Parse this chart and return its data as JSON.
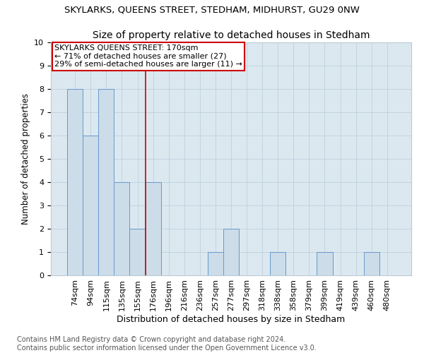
{
  "title": "SKYLARKS, QUEENS STREET, STEDHAM, MIDHURST, GU29 0NW",
  "subtitle": "Size of property relative to detached houses in Stedham",
  "xlabel": "Distribution of detached houses by size in Stedham",
  "ylabel": "Number of detached properties",
  "categories": [
    "74sqm",
    "94sqm",
    "115sqm",
    "135sqm",
    "155sqm",
    "176sqm",
    "196sqm",
    "216sqm",
    "236sqm",
    "257sqm",
    "277sqm",
    "297sqm",
    "318sqm",
    "338sqm",
    "358sqm",
    "379sqm",
    "399sqm",
    "419sqm",
    "439sqm",
    "460sqm",
    "480sqm"
  ],
  "values": [
    8,
    6,
    8,
    4,
    2,
    4,
    0,
    0,
    0,
    1,
    2,
    0,
    0,
    1,
    0,
    0,
    1,
    0,
    0,
    1,
    0
  ],
  "bar_color": "#ccdce8",
  "bar_edge_color": "#6699cc",
  "subject_line_index": 5,
  "subject_label": "SKYLARKS QUEENS STREET: 170sqm",
  "arrow_left_text": "← 71% of detached houses are smaller (27)",
  "arrow_right_text": "29% of semi-detached houses are larger (11) →",
  "annotation_box_color": "#ffffff",
  "annotation_box_edge_color": "#cc0000",
  "ylim": [
    0,
    10
  ],
  "yticks": [
    0,
    1,
    2,
    3,
    4,
    5,
    6,
    7,
    8,
    9,
    10
  ],
  "footnote": "Contains HM Land Registry data © Crown copyright and database right 2024.\nContains public sector information licensed under the Open Government Licence v3.0.",
  "plot_bg_color": "#dce8f0",
  "title_fontsize": 9.5,
  "subtitle_fontsize": 10,
  "xlabel_fontsize": 9,
  "ylabel_fontsize": 8.5,
  "tick_fontsize": 8,
  "annotation_fontsize": 8,
  "footnote_fontsize": 7
}
